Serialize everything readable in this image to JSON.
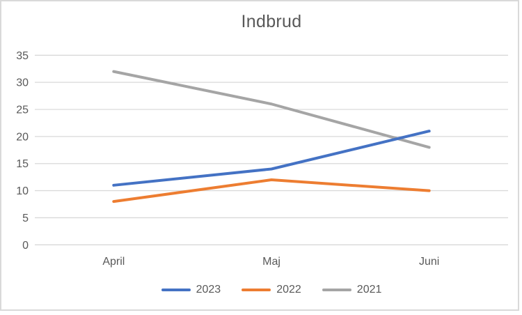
{
  "frame": {
    "background": "#FFFFFF",
    "border_color": "#D9D9D9"
  },
  "chart_data": {
    "type": "line",
    "title": "Indbrud",
    "categories": [
      "April",
      "Maj",
      "Juni"
    ],
    "series": [
      {
        "name": "2023",
        "color": "#4472C4",
        "values": [
          11,
          14,
          21
        ]
      },
      {
        "name": "2022",
        "color": "#ED7D31",
        "values": [
          8,
          12,
          10
        ]
      },
      {
        "name": "2021",
        "color": "#A5A5A5",
        "values": [
          32,
          26,
          18
        ]
      }
    ],
    "y_axis": {
      "min": 0,
      "max": 35,
      "step": 5,
      "ticks": [
        0,
        5,
        10,
        15,
        20,
        25,
        30,
        35
      ]
    },
    "xlabel": "",
    "ylabel": "",
    "grid": true,
    "legend_position": "bottom",
    "text_color": "#595959",
    "gridline_color": "#D9D9D9",
    "line_width": 4
  }
}
